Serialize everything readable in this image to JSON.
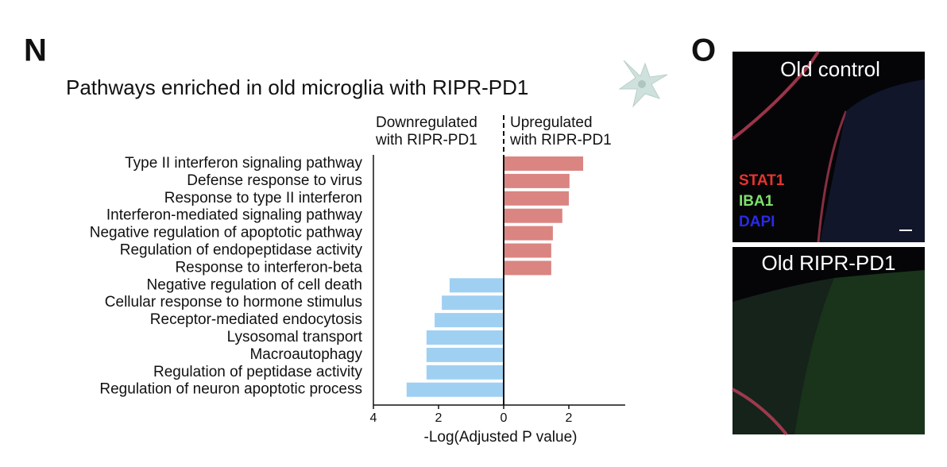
{
  "chart_data": {
    "type": "bar",
    "orientation": "horizontal",
    "panel_label": "N",
    "title": "Pathways enriched in old microglia with RIPR-PD1",
    "categories": [
      "Type II interferon signaling pathway",
      "Defense response to virus",
      "Response to type II interferon",
      "Interferon-mediated signaling pathway",
      "Negative regulation of apoptotic pathway",
      "Regulation of endopeptidase activity",
      "Response to interferon-beta",
      "Negative regulation of cell death",
      "Cellular response to hormone stimulus",
      "Receptor-mediated endocytosis",
      "Lysosomal transport",
      "Macroautophagy",
      "Regulation of peptidase activity",
      "Regulation of neuron apoptotic process"
    ],
    "series": [
      {
        "name": "Downregulated\nwith RIPR-PD1",
        "color": "#9fd0f2",
        "values": [
          null,
          null,
          null,
          null,
          null,
          null,
          null,
          -1.66,
          -1.9,
          -2.12,
          -2.37,
          -2.37,
          -2.37,
          -2.98
        ]
      },
      {
        "name": "Upregulated\nwith RIPR-PD1",
        "color": "#da8582",
        "values": [
          2.44,
          2.02,
          2.0,
          1.8,
          1.51,
          1.46,
          1.46,
          null,
          null,
          null,
          null,
          null,
          null,
          null
        ]
      }
    ],
    "x_label": "-Log(Adjusted P value)",
    "xlim": [
      -4,
      3.73
    ],
    "xticks": [
      {
        "value": -4,
        "label": "4"
      },
      {
        "value": -2,
        "label": "2"
      },
      0,
      2
    ]
  },
  "panel_o": {
    "label": "O",
    "images": [
      {
        "title": "Old control"
      },
      {
        "title": "Old RIPR-PD1"
      }
    ],
    "stains": [
      {
        "name": "STAT1",
        "color": "#e8342e"
      },
      {
        "name": "IBA1",
        "color": "#7ee06a"
      },
      {
        "name": "DAPI",
        "color": "#2a2ae8"
      }
    ]
  }
}
